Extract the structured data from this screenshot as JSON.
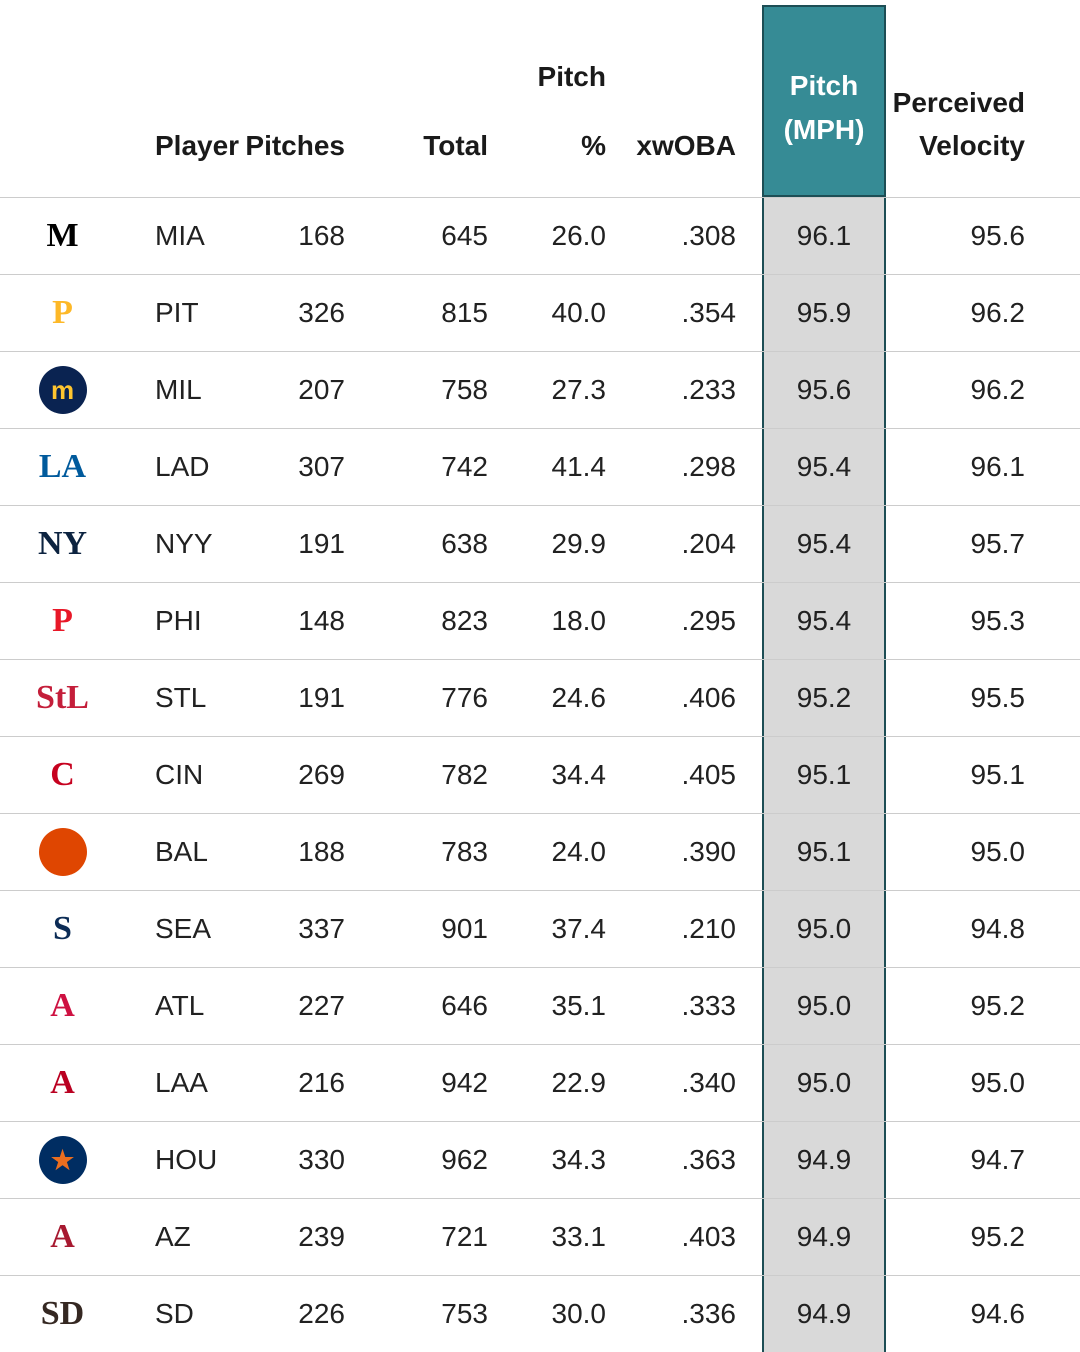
{
  "header": {
    "col_player": "Player",
    "col_pitches": "Pitches",
    "col_total": "Total",
    "col_pct_line1": "Pitch",
    "col_pct_line2": "%",
    "col_xwoba": "xwOBA",
    "col_mph_line1": "Pitch",
    "col_mph_line2": "(MPH)",
    "col_pv_line1": "Perceived",
    "col_pv_line2": "Velocity"
  },
  "colors": {
    "highlight_header_bg": "#368b95",
    "highlight_header_text": "#ffffff",
    "highlight_column_bg": "#d9d9d9",
    "highlight_border": "#1d4e55",
    "row_divider": "#cccccc",
    "text": "#212121"
  },
  "chart_data": {
    "type": "table",
    "title": "",
    "columns": [
      "Player",
      "Pitches",
      "Total",
      "Pitch %",
      "xwOBA",
      "Pitch (MPH)",
      "Perceived Velocity"
    ],
    "highlighted_column": "Pitch (MPH)",
    "rows": [
      {
        "team": "MIA",
        "pitches": "168",
        "total": "645",
        "pct": "26.0",
        "xwoba": ".308",
        "mph": "96.1",
        "pv": "95.6",
        "logo": {
          "name": "marlins-logo",
          "text": "M",
          "color": "#000000",
          "bg": "",
          "shape": "text"
        }
      },
      {
        "team": "PIT",
        "pitches": "326",
        "total": "815",
        "pct": "40.0",
        "xwoba": ".354",
        "mph": "95.9",
        "pv": "96.2",
        "logo": {
          "name": "pirates-logo",
          "text": "P",
          "color": "#FDB827",
          "bg": "",
          "shape": "text"
        }
      },
      {
        "team": "MIL",
        "pitches": "207",
        "total": "758",
        "pct": "27.3",
        "xwoba": ".233",
        "mph": "95.6",
        "pv": "96.2",
        "logo": {
          "name": "brewers-logo",
          "text": "m",
          "color": "#FFC52F",
          "bg": "#0A2351",
          "shape": "circle"
        }
      },
      {
        "team": "LAD",
        "pitches": "307",
        "total": "742",
        "pct": "41.4",
        "xwoba": ".298",
        "mph": "95.4",
        "pv": "96.1",
        "logo": {
          "name": "dodgers-logo",
          "text": "LA",
          "color": "#005A9C",
          "bg": "",
          "shape": "text"
        }
      },
      {
        "team": "NYY",
        "pitches": "191",
        "total": "638",
        "pct": "29.9",
        "xwoba": ".204",
        "mph": "95.4",
        "pv": "95.7",
        "logo": {
          "name": "yankees-logo",
          "text": "NY",
          "color": "#0C2340",
          "bg": "",
          "shape": "text"
        }
      },
      {
        "team": "PHI",
        "pitches": "148",
        "total": "823",
        "pct": "18.0",
        "xwoba": ".295",
        "mph": "95.4",
        "pv": "95.3",
        "logo": {
          "name": "phillies-logo",
          "text": "P",
          "color": "#E81828",
          "bg": "",
          "shape": "text"
        }
      },
      {
        "team": "STL",
        "pitches": "191",
        "total": "776",
        "pct": "24.6",
        "xwoba": ".406",
        "mph": "95.2",
        "pv": "95.5",
        "logo": {
          "name": "cardinals-logo",
          "text": "StL",
          "color": "#C41E3A",
          "bg": "",
          "shape": "text"
        }
      },
      {
        "team": "CIN",
        "pitches": "269",
        "total": "782",
        "pct": "34.4",
        "xwoba": ".405",
        "mph": "95.1",
        "pv": "95.1",
        "logo": {
          "name": "reds-logo",
          "text": "C",
          "color": "#C6011F",
          "bg": "",
          "shape": "text"
        }
      },
      {
        "team": "BAL",
        "pitches": "188",
        "total": "783",
        "pct": "24.0",
        "xwoba": ".390",
        "mph": "95.1",
        "pv": "95.0",
        "logo": {
          "name": "orioles-bird-logo",
          "text": "",
          "color": "#000000",
          "bg": "#DF4601",
          "shape": "circle"
        }
      },
      {
        "team": "SEA",
        "pitches": "337",
        "total": "901",
        "pct": "37.4",
        "xwoba": ".210",
        "mph": "95.0",
        "pv": "94.8",
        "logo": {
          "name": "mariners-logo",
          "text": "S",
          "color": "#0C2C56",
          "bg": "",
          "shape": "text"
        }
      },
      {
        "team": "ATL",
        "pitches": "227",
        "total": "646",
        "pct": "35.1",
        "xwoba": ".333",
        "mph": "95.0",
        "pv": "95.2",
        "logo": {
          "name": "braves-logo",
          "text": "A",
          "color": "#CE1141",
          "bg": "",
          "shape": "text"
        }
      },
      {
        "team": "LAA",
        "pitches": "216",
        "total": "942",
        "pct": "22.9",
        "xwoba": ".340",
        "mph": "95.0",
        "pv": "95.0",
        "logo": {
          "name": "angels-logo",
          "text": "A",
          "color": "#BA0021",
          "bg": "",
          "shape": "text"
        }
      },
      {
        "team": "HOU",
        "pitches": "330",
        "total": "962",
        "pct": "34.3",
        "xwoba": ".363",
        "mph": "94.9",
        "pv": "94.7",
        "logo": {
          "name": "astros-logo",
          "text": "★",
          "color": "#EB6E1F",
          "bg": "#002D62",
          "shape": "circle"
        }
      },
      {
        "team": "AZ",
        "pitches": "239",
        "total": "721",
        "pct": "33.1",
        "xwoba": ".403",
        "mph": "94.9",
        "pv": "95.2",
        "logo": {
          "name": "diamondbacks-logo",
          "text": "A",
          "color": "#A71930",
          "bg": "",
          "shape": "text"
        }
      },
      {
        "team": "SD",
        "pitches": "226",
        "total": "753",
        "pct": "30.0",
        "xwoba": ".336",
        "mph": "94.9",
        "pv": "94.6",
        "logo": {
          "name": "padres-logo",
          "text": "SD",
          "color": "#352822",
          "bg": "",
          "shape": "text"
        }
      }
    ]
  }
}
